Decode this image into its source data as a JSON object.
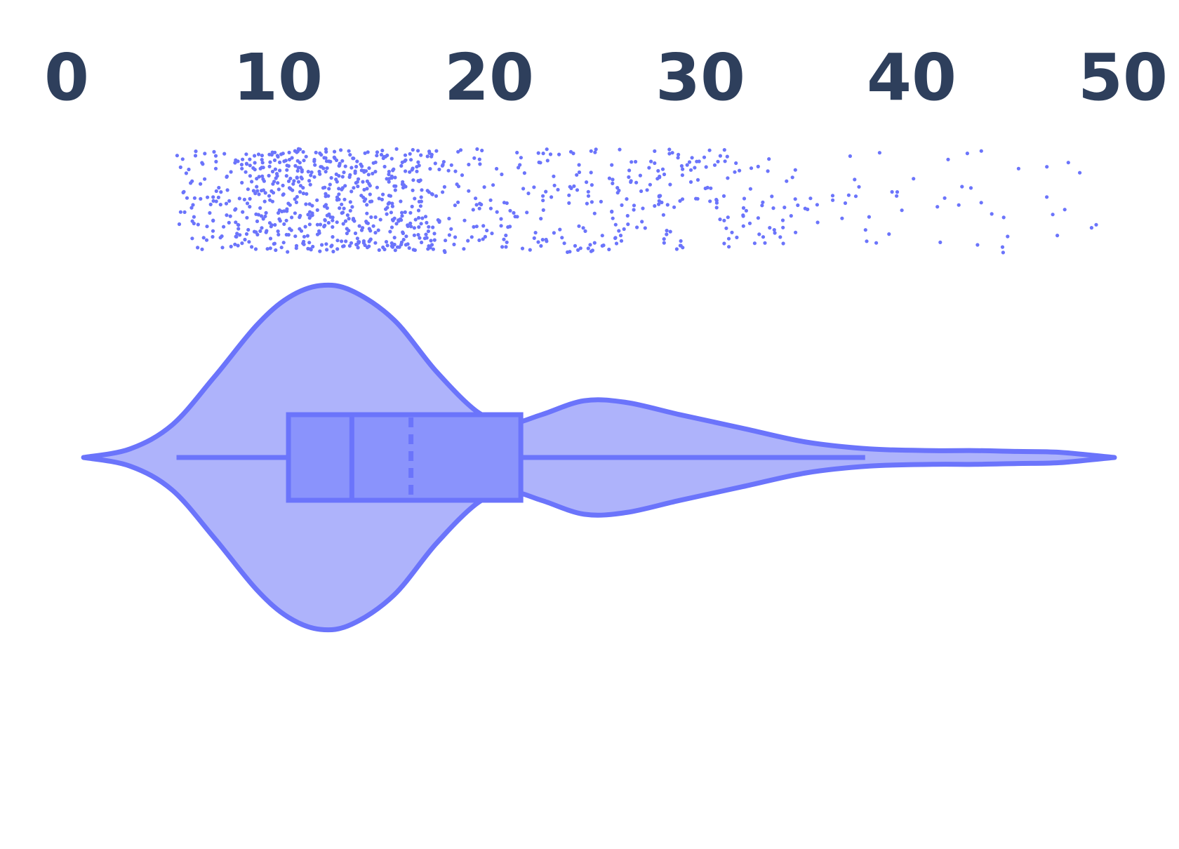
{
  "chart_data": {
    "type": "violin",
    "orientation": "horizontal",
    "title": "",
    "xlabel": "",
    "ylabel": "",
    "xlim": [
      0,
      50
    ],
    "x_ticks": [
      0,
      10,
      20,
      30,
      40,
      50
    ],
    "x_tick_labels": [
      "0",
      "10",
      "20",
      "30",
      "40",
      "50"
    ],
    "grid": false,
    "legend": "none",
    "colors": {
      "stroke": "#6b74fb",
      "violin_fill": "#aeb3fb",
      "box_fill": "#8a93fc",
      "point": "#6b74fb",
      "tick_text": "#2e3f5c"
    },
    "box": {
      "whisker_low": 5.2,
      "q1": 10.5,
      "median": 13.5,
      "mean": 16.3,
      "q3": 21.5,
      "whisker_high": 37.8
    },
    "violin": {
      "range": [
        0.8,
        49.6
      ],
      "density_profile": [
        {
          "x": 0.8,
          "d": 0.0
        },
        {
          "x": 3.0,
          "d": 0.05
        },
        {
          "x": 5.0,
          "d": 0.19
        },
        {
          "x": 7.0,
          "d": 0.47
        },
        {
          "x": 9.0,
          "d": 0.77
        },
        {
          "x": 10.5,
          "d": 0.93
        },
        {
          "x": 12.0,
          "d": 1.0
        },
        {
          "x": 13.5,
          "d": 0.97
        },
        {
          "x": 15.5,
          "d": 0.8
        },
        {
          "x": 17.5,
          "d": 0.5
        },
        {
          "x": 19.5,
          "d": 0.26
        },
        {
          "x": 21.0,
          "d": 0.2
        },
        {
          "x": 22.5,
          "d": 0.25
        },
        {
          "x": 24.5,
          "d": 0.33
        },
        {
          "x": 26.5,
          "d": 0.32
        },
        {
          "x": 29.0,
          "d": 0.25
        },
        {
          "x": 32.0,
          "d": 0.17
        },
        {
          "x": 35.0,
          "d": 0.09
        },
        {
          "x": 38.0,
          "d": 0.05
        },
        {
          "x": 41.0,
          "d": 0.04
        },
        {
          "x": 43.0,
          "d": 0.04
        },
        {
          "x": 45.0,
          "d": 0.035
        },
        {
          "x": 47.0,
          "d": 0.03
        },
        {
          "x": 49.6,
          "d": 0.0
        }
      ]
    },
    "strip": {
      "n_points": 1000,
      "range": [
        5.2,
        49.2
      ],
      "distribution": "right-skewed, dense between 7 and 22, sparse tail to 49"
    }
  }
}
